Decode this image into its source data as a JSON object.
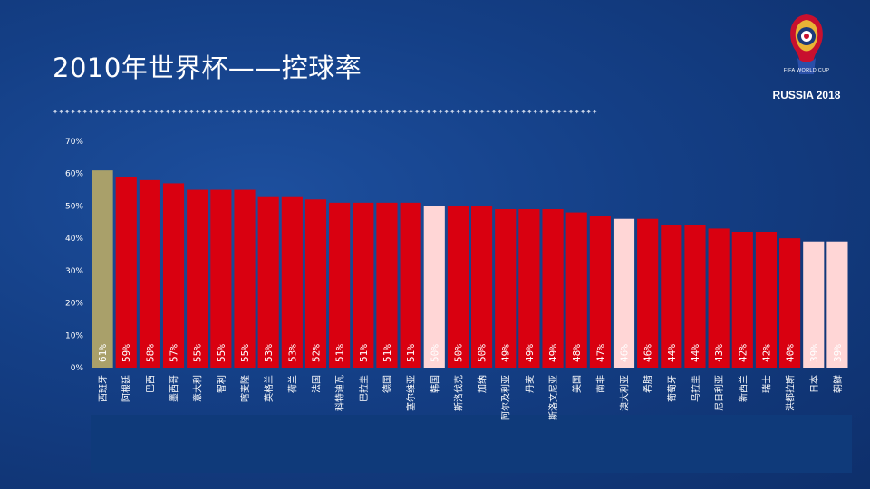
{
  "slide": {
    "title": "2010年世界杯——控球率",
    "logo_caption_top": "FIFA WORLD CUP",
    "logo_caption_bottom": "RUSSIA 2018",
    "divider": "✦✦✦✦✦✦✦✦✦✦✦✦✦✦✦✦✦✦✦✦✦✦✦✦✦✦✦✦✦✦✦✦✦✦✦✦✦✦✦✦✦✦✦✦✦✦✦✦✦✦✦✦✦✦✦✦✦✦✦✦✦✦✦✦✦✦✦✦✦✦✦✦✦✦✦✦✦✦✦✦✦✦✦✦✦✦✦✦✦✦✦✦"
  },
  "colors": {
    "highlight_gold": "#a9a06a",
    "bar_red": "#d90010",
    "bar_pink": "#ffd6d6"
  },
  "chart_data": {
    "type": "bar",
    "title": "",
    "xlabel": "",
    "ylabel": "",
    "ylim": [
      0,
      70
    ],
    "yticks": [
      "0%",
      "10%",
      "20%",
      "30%",
      "40%",
      "50%",
      "60%",
      "70%"
    ],
    "grid": false,
    "legend": "none",
    "categories": [
      "西班牙",
      "阿根廷",
      "巴西",
      "墨西哥",
      "意大利",
      "智利",
      "喀麦隆",
      "英格兰",
      "荷兰",
      "法国",
      "科特迪瓦",
      "巴拉圭",
      "德国",
      "塞尔维亚",
      "韩国",
      "斯洛伐克",
      "加纳",
      "阿尔及利亚",
      "丹麦",
      "斯洛文尼亚",
      "美国",
      "南非",
      "澳大利亚",
      "希腊",
      "葡萄牙",
      "乌拉圭",
      "尼日利亚",
      "新西兰",
      "瑞士",
      "洪都拉斯",
      "日本",
      "朝鲜"
    ],
    "values": [
      61,
      59,
      58,
      57,
      55,
      55,
      55,
      53,
      53,
      52,
      51,
      51,
      51,
      51,
      50,
      50,
      50,
      49,
      49,
      49,
      48,
      47,
      46,
      46,
      44,
      44,
      43,
      42,
      42,
      40,
      39,
      39
    ],
    "labels": [
      "61%",
      "59%",
      "58%",
      "57%",
      "55%",
      "55%",
      "55%",
      "53%",
      "53%",
      "52%",
      "51%",
      "51%",
      "51%",
      "51%",
      "50%",
      "50%",
      "50%",
      "49%",
      "49%",
      "49%",
      "48%",
      "47%",
      "46%",
      "46%",
      "44%",
      "44%",
      "43%",
      "42%",
      "42%",
      "40%",
      "39%",
      "39%"
    ],
    "bar_colors": [
      "gold",
      "red",
      "red",
      "red",
      "red",
      "red",
      "red",
      "red",
      "red",
      "red",
      "red",
      "red",
      "red",
      "red",
      "pink",
      "red",
      "red",
      "red",
      "red",
      "red",
      "red",
      "red",
      "pink",
      "red",
      "red",
      "red",
      "red",
      "red",
      "red",
      "red",
      "pink",
      "pink"
    ]
  }
}
